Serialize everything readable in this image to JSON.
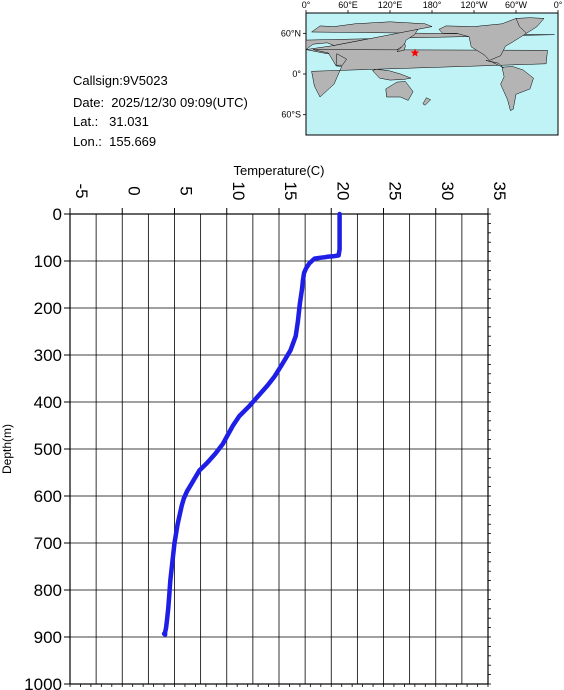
{
  "info": {
    "callsign": "Callsign:9V5023",
    "date": "Date:  2025/12/30 09:09(UTC)",
    "lat": "Lat.:   31.031",
    "lon": "Lon.:  155.669"
  },
  "map": {
    "lon_labels": [
      "0°",
      "60°E",
      "120°E",
      "180°",
      "120°W",
      "60°W",
      "0°"
    ],
    "lat_labels": [
      "60°N",
      "0°",
      "60°S"
    ],
    "marker_lat": 31.031,
    "marker_lon": 155.669,
    "ocean_color": "#bff3f6",
    "land_color": "#b4b4b4",
    "marker_color": "#ff0000"
  },
  "chart_data": {
    "type": "line",
    "xlabel": "Temperature(C)",
    "ylabel": "Depth(m)",
    "xlim": [
      -5,
      35
    ],
    "ylim": [
      0,
      1000
    ],
    "x_ticks": [
      "-5",
      "0",
      "5",
      "10",
      "15",
      "20",
      "25",
      "30",
      "35"
    ],
    "y_ticks": [
      "0",
      "100",
      "200",
      "300",
      "400",
      "500",
      "600",
      "700",
      "800",
      "900",
      "1000"
    ],
    "grid": true,
    "line_color": "#1e1ee6",
    "series": [
      {
        "temperature": [
          20.8,
          20.8,
          20.8,
          20.8,
          20.7,
          20.2,
          19.6,
          19.4,
          19.0,
          18.4,
          17.9,
          17.6,
          17.4,
          17.3,
          17.2,
          17.0,
          16.8,
          16.6,
          16.1,
          15.3,
          14.6,
          13.9,
          12.9,
          12.1,
          11.2,
          10.6,
          10.1,
          9.6,
          8.9,
          8.1,
          7.4,
          7.0,
          6.6,
          6.2,
          5.9,
          5.7,
          5.5,
          5.3,
          5.0,
          4.8,
          4.6,
          4.5,
          4.4,
          4.3,
          4.2,
          4.1,
          4.1,
          4.0
        ],
        "depth": [
          0,
          20,
          50,
          75,
          88,
          90,
          91,
          92,
          93,
          95,
          105,
          115,
          125,
          140,
          160,
          190,
          230,
          260,
          290,
          320,
          345,
          365,
          390,
          410,
          430,
          450,
          470,
          490,
          510,
          530,
          545,
          560,
          575,
          590,
          605,
          620,
          640,
          660,
          700,
          740,
          780,
          810,
          840,
          860,
          880,
          890,
          895,
          893
        ]
      }
    ]
  }
}
